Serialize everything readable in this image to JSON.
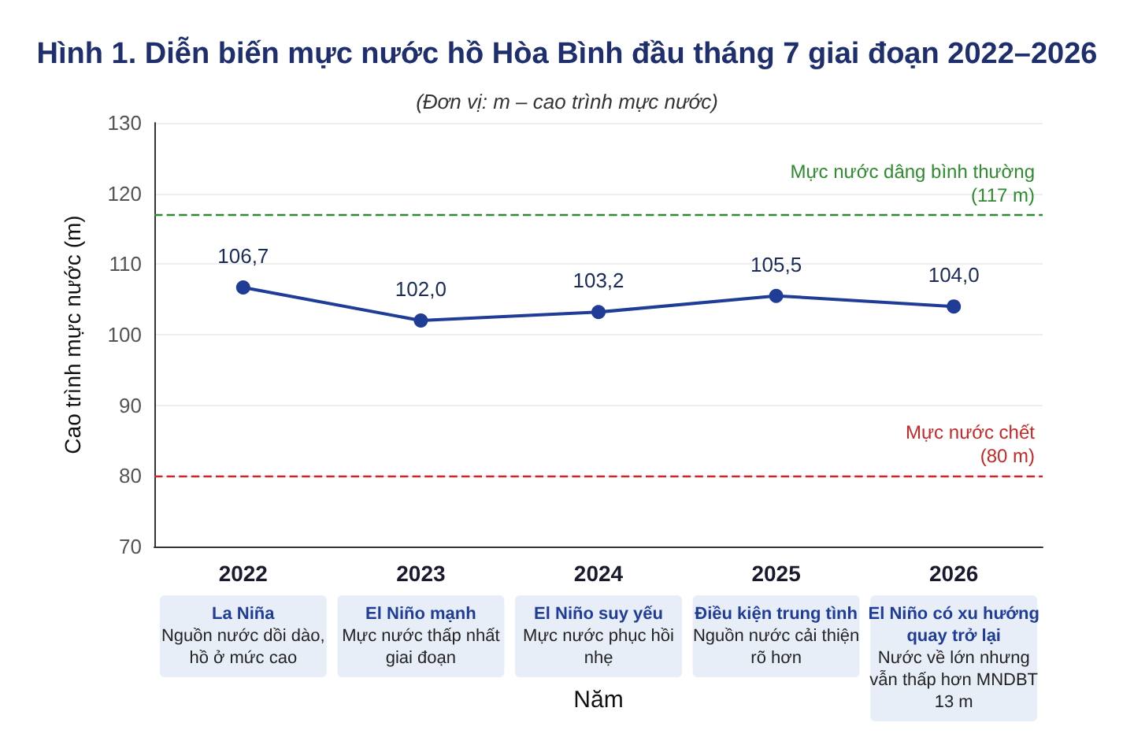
{
  "chart_data": {
    "type": "line",
    "title": "Hình 1. Diễn biến mực nước hồ Hòa Bình đầu tháng 7 giai đoạn 2022–2026",
    "subtitle": "(Đơn vị: m – cao trình mực nước)",
    "xlabel": "Năm",
    "ylabel": "Cao trình mực nước (m)",
    "categories": [
      "2022",
      "2023",
      "2024",
      "2025",
      "2026"
    ],
    "series": [
      {
        "color": "#1f3c96",
        "values": [
          106.7,
          102.0,
          103.2,
          105.5,
          104.0
        ],
        "value_labels": [
          "106,7",
          "102,0",
          "103,2",
          "105,5",
          "104,0"
        ]
      }
    ],
    "ylim": [
      70,
      130
    ],
    "yticks": [
      70,
      80,
      90,
      100,
      110,
      120,
      130
    ],
    "grid": "y",
    "marker": "circle",
    "line_style": "solid",
    "ref_lines": [
      {
        "axis": "y",
        "value": 117,
        "label": "Mực nước dâng bình thường\n(117 m)",
        "color": "#2e8b2e",
        "line_style": "dashed"
      },
      {
        "axis": "y",
        "value": 80,
        "label": "Mực nước chết\n(80 m)",
        "color": "#c62828",
        "line_style": "dashed"
      }
    ],
    "annotations": [
      "La Niña",
      "Nguồn nước dồi dào,\nhồ ở mức cao",
      "El Niño mạnh",
      "Mực nước thấp nhất\ngiai đoạn",
      "El Niño suy yếu",
      "Mực nước phục hồi\nnhẹ",
      "Điều kiện trung tình",
      "Nguồn nước cải thiện\nrõ hơn",
      "El Niño có xu hướng\nquay trở lại",
      "Nước về lớn nhưng\nvẫn thấp hơn MNDBT\n13 m"
    ]
  }
}
